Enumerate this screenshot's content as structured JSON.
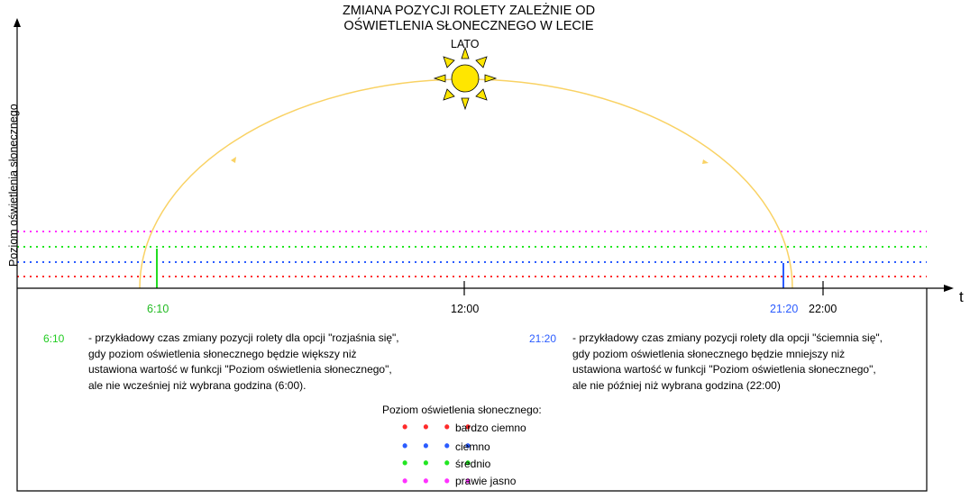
{
  "title": {
    "line1": "ZMIANA POZYCJI ROLETY ZALEŻNIE OD",
    "line2": "OŚWIETLENIA SŁONECZNEGO W LECIE"
  },
  "season_label": "LATO",
  "y_axis_label": "Poziom oświetlenia słonecznego",
  "x_axis_label": "t",
  "x_ticks": {
    "sunrise_switch": "6:10",
    "noon": "12:00",
    "sunset_switch": "21:20",
    "latest": "22:00"
  },
  "notes": {
    "morning": {
      "time": "6:10",
      "text": "- przykładowy czas zmiany pozycji rolety dla opcji \"rozjaśnia się\",\ngdy poziom oświetlenia słonecznego będzie większy niż\nustawiona wartość w funkcji \"Poziom oświetlenia słonecznego\",\nale nie wcześniej niż wybrana godzina (6:00)."
    },
    "evening": {
      "time": "21:20",
      "text": "- przykładowy czas zmiany pozycji rolety dla opcji \"ściemnia się\",\ngdy poziom oświetlenia słonecznego będzie mniejszy niż\nustawiona wartość w funkcji \"Poziom oświetlenia słonecznego\",\nale nie później niż wybrana godzina (22:00)"
    }
  },
  "legend": {
    "title": "Poziom oświetlenia słonecznego:",
    "items": [
      {
        "label": "bardzo ciemno",
        "color": "#ff2b2b"
      },
      {
        "label": "ciemno",
        "color": "#2b5cff"
      },
      {
        "label": "średnio",
        "color": "#22e622"
      },
      {
        "label": "prawie jasno",
        "color": "#ff33ff"
      }
    ]
  },
  "colors": {
    "arc": "#f9d264",
    "sun": "#ffe600",
    "sunrise_marker": "#22dd22",
    "sunset_marker": "#2b5cff",
    "axis": "#000000"
  },
  "icons": {
    "sun": "sun-icon"
  }
}
